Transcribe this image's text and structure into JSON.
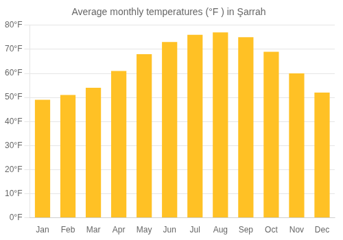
{
  "chart_data": {
    "type": "bar",
    "title": "Average monthly temperatures (°F ) in Şarrah",
    "categories": [
      "Jan",
      "Feb",
      "Mar",
      "Apr",
      "May",
      "Jun",
      "Jul",
      "Aug",
      "Sep",
      "Oct",
      "Nov",
      "Dec"
    ],
    "values": [
      49,
      51,
      54,
      61,
      68,
      73,
      76,
      77,
      75,
      69,
      60,
      52
    ],
    "color": "#FFC125",
    "ylim": [
      0,
      80
    ],
    "yticks": [
      {
        "value": 0,
        "label": "0°F"
      },
      {
        "value": 10,
        "label": "10°F"
      },
      {
        "value": 20,
        "label": "20°F"
      },
      {
        "value": 30,
        "label": "30°F"
      },
      {
        "value": 40,
        "label": "40°F"
      },
      {
        "value": 50,
        "label": "50°F"
      },
      {
        "value": 60,
        "label": "60°F"
      },
      {
        "value": 70,
        "label": "70°F"
      },
      {
        "value": 80,
        "label": "80°F"
      }
    ],
    "grid": true
  }
}
